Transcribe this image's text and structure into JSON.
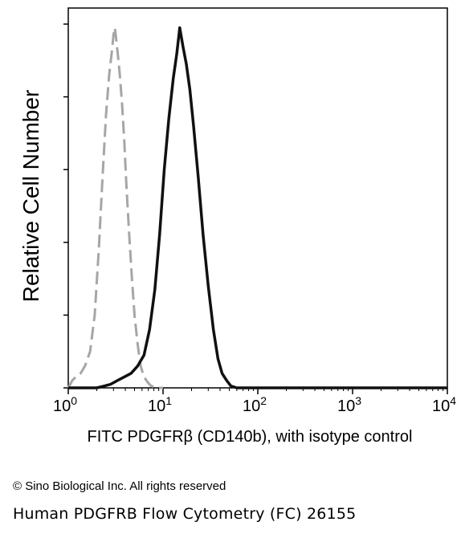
{
  "chart_data": {
    "type": "line",
    "xlabel": "FITC PDGFRβ (CD140b), with isotype control",
    "ylabel": "Relative Cell Number",
    "x_scale": "log",
    "xlim": [
      1,
      10000
    ],
    "ylim": [
      0,
      100
    ],
    "x_ticks": [
      {
        "value": 1,
        "base": "10",
        "exp": "0"
      },
      {
        "value": 10,
        "base": "10",
        "exp": "1"
      },
      {
        "value": 100,
        "base": "10",
        "exp": "2"
      },
      {
        "value": 1000,
        "base": "10",
        "exp": "3"
      },
      {
        "value": 10000,
        "base": "10",
        "exp": "4"
      }
    ],
    "y_ticks": [
      0,
      20,
      40,
      60,
      80,
      100
    ],
    "grid": false,
    "series": [
      {
        "style": "dashed",
        "color": "#a6a6a6",
        "x": [
          1.0,
          1.05,
          1.1,
          1.2,
          1.35,
          1.5,
          1.7,
          1.9,
          2.1,
          2.3,
          2.5,
          2.7,
          2.9,
          3.0,
          3.1,
          3.2,
          3.35,
          3.5,
          3.7,
          3.9,
          4.1,
          4.4,
          4.7,
          5.0,
          5.4,
          5.8,
          6.3,
          6.9,
          7.5,
          8.2,
          9.0,
          10.0
        ],
        "y": [
          0,
          1,
          2,
          3,
          4,
          6,
          10,
          20,
          38,
          58,
          75,
          86,
          93,
          97,
          99,
          96,
          91,
          86,
          78,
          68,
          56,
          42,
          30,
          20,
          12,
          6,
          3,
          1.5,
          0.5,
          0.2,
          0,
          0
        ]
      },
      {
        "style": "solid",
        "color": "#111111",
        "x": [
          1.0,
          2.0,
          2.4,
          2.8,
          3.3,
          3.9,
          4.6,
          5.4,
          6.3,
          7.2,
          8.2,
          9.2,
          10.3,
          11.5,
          12.8,
          14.0,
          15.0,
          16.2,
          17.6,
          19.2,
          21.0,
          23.5,
          26.5,
          30.0,
          34.0,
          38.0,
          42.0,
          47.0,
          52.0,
          60.0,
          80.0,
          10000.0
        ],
        "y": [
          0,
          0,
          0.5,
          1,
          2,
          3,
          4,
          6,
          9,
          16,
          27,
          42,
          60,
          74,
          85,
          92,
          99,
          94,
          89,
          82,
          72,
          58,
          42,
          28,
          16,
          8,
          4,
          2,
          0.5,
          0,
          0,
          0
        ]
      }
    ]
  },
  "footer": {
    "copyright": "© Sino Biological Inc. All rights reserved",
    "caption": "Human PDGFRB Flow Cytometry (FC) 26155"
  }
}
